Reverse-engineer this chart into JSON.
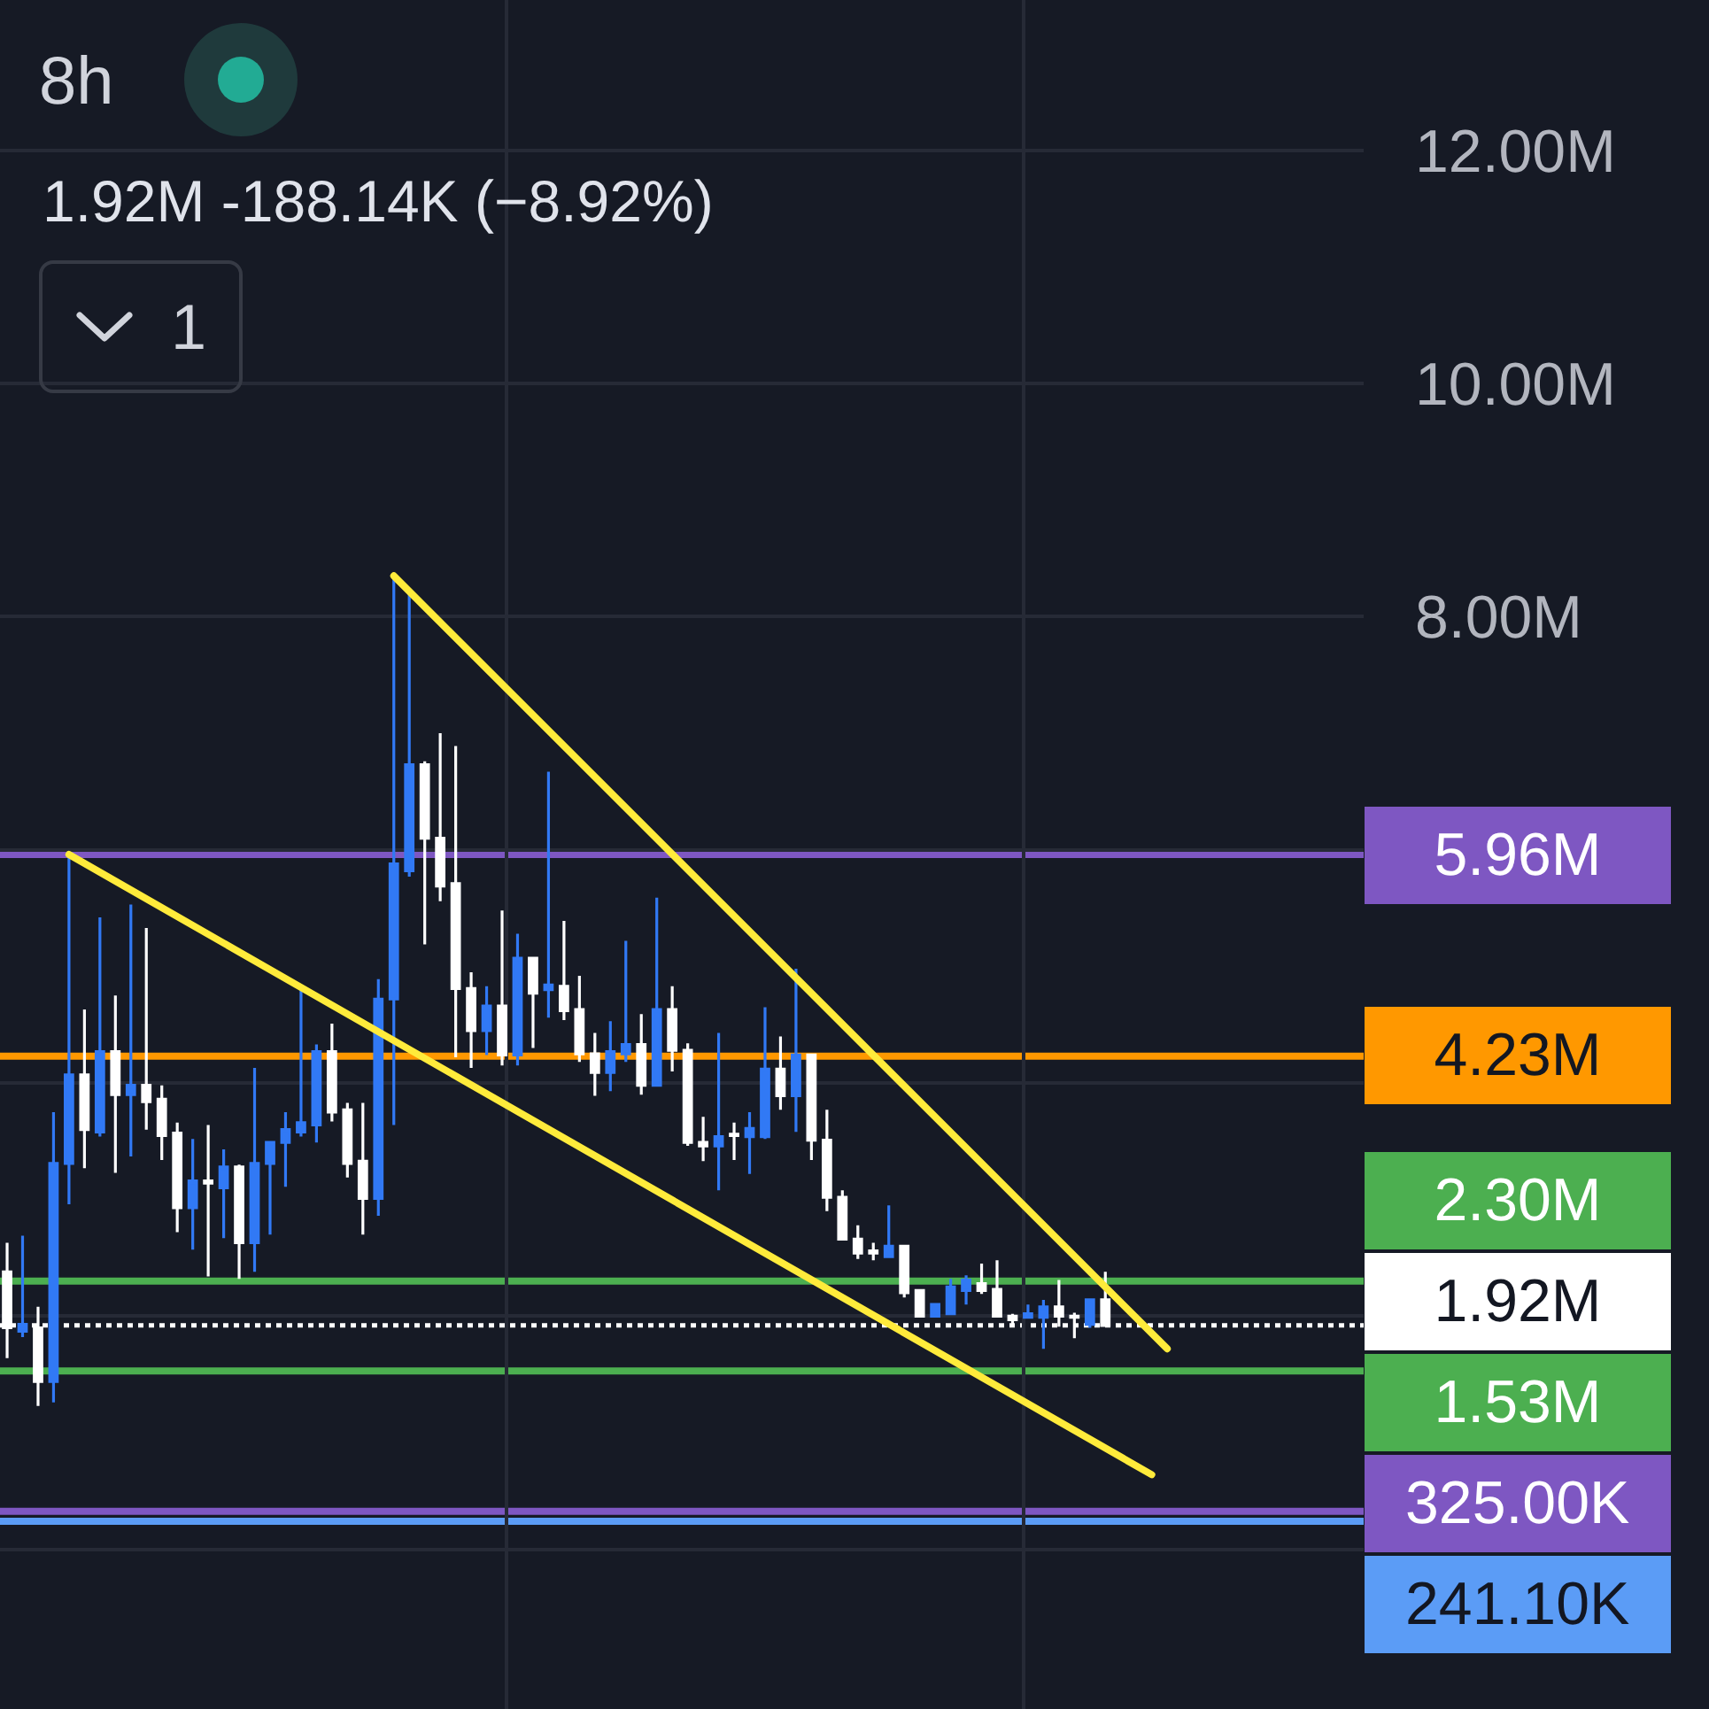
{
  "chart_data": {
    "type": "candlestick",
    "title": "8h",
    "subtitle": "1.92M -188.14K (−8.92%)",
    "annotations": [
      "1"
    ],
    "categories": [
      null,
      null,
      null,
      null,
      null,
      null,
      null,
      null,
      null,
      null,
      null,
      null,
      null,
      null,
      null,
      null,
      null,
      null,
      null,
      null,
      null,
      null,
      null,
      null,
      null,
      null,
      null,
      null,
      null,
      null,
      null,
      null,
      null,
      null,
      null,
      null,
      null,
      null,
      null,
      null,
      null,
      null,
      null,
      null,
      null,
      null,
      null,
      null,
      null,
      null,
      null,
      null,
      null,
      null,
      null,
      null,
      null,
      null,
      null,
      null,
      null,
      null,
      null,
      null,
      null,
      null,
      null,
      null,
      null,
      null,
      null,
      null,
      null,
      null,
      null,
      null,
      null,
      null,
      null,
      null,
      null,
      null,
      null,
      null,
      null,
      null,
      null,
      null
    ],
    "ohlc": [
      [
        2380000,
        2630000,
        1640000,
        1900000
      ],
      [
        1870000,
        2690000,
        1820000,
        1930000
      ],
      [
        1900000,
        2080000,
        1230000,
        1440000
      ],
      [
        1440000,
        3750000,
        1260000,
        3310000
      ],
      [
        3310000,
        5960000,
        2960000,
        4070000
      ],
      [
        4070000,
        4630000,
        3270000,
        3600000
      ],
      [
        3580000,
        5420000,
        3540000,
        4270000
      ],
      [
        4270000,
        4750000,
        3230000,
        3900000
      ],
      [
        3900000,
        5530000,
        3370000,
        3980000
      ],
      [
        3980000,
        5330000,
        3600000,
        3840000
      ],
      [
        3860000,
        3980000,
        3340000,
        3550000
      ],
      [
        3570000,
        3660000,
        2720000,
        2930000
      ],
      [
        2930000,
        3520000,
        2570000,
        3160000
      ],
      [
        3160000,
        3640000,
        2340000,
        3140000
      ],
      [
        3100000,
        3430000,
        2670000,
        3280000
      ],
      [
        3280000,
        3300000,
        2320000,
        2630000
      ],
      [
        2630000,
        4130000,
        2380000,
        3310000
      ],
      [
        3310000,
        3490000,
        2700000,
        3490000
      ],
      [
        3490000,
        3750000,
        3110000,
        3600000
      ],
      [
        3580000,
        4830000,
        3540000,
        3660000
      ],
      [
        3640000,
        4330000,
        3490000,
        4270000
      ],
      [
        4270000,
        4510000,
        3670000,
        3750000
      ],
      [
        3770000,
        3830000,
        3190000,
        3310000
      ],
      [
        3330000,
        3830000,
        2700000,
        3010000
      ],
      [
        3010000,
        4890000,
        2860000,
        4720000
      ],
      [
        4720000,
        8350000,
        3640000,
        5880000
      ],
      [
        5820000,
        8200000,
        5770000,
        6730000
      ],
      [
        6730000,
        6760000,
        5190000,
        6100000
      ],
      [
        6100000,
        7000000,
        5560000,
        5690000
      ],
      [
        5710000,
        6890000,
        4220000,
        4810000
      ],
      [
        4810000,
        4950000,
        4130000,
        4450000
      ],
      [
        4450000,
        4830000,
        4240000,
        4660000
      ],
      [
        4660000,
        5480000,
        4150000,
        4240000
      ],
      [
        4240000,
        5280000,
        4150000,
        5070000
      ],
      [
        5070000,
        5070000,
        4300000,
        4770000
      ],
      [
        4800000,
        6670000,
        4560000,
        4840000
      ],
      [
        4830000,
        5390000,
        4540000,
        4620000
      ],
      [
        4630000,
        4920000,
        4180000,
        4250000
      ],
      [
        4250000,
        4430000,
        3890000,
        4090000
      ],
      [
        4090000,
        4530000,
        3930000,
        4270000
      ],
      [
        4250000,
        5220000,
        4180000,
        4330000
      ],
      [
        4330000,
        4590000,
        3900000,
        3980000
      ],
      [
        3980000,
        5590000,
        3980000,
        4630000
      ],
      [
        4630000,
        4830000,
        4100000,
        4280000
      ],
      [
        4280000,
        4340000,
        3460000,
        3490000
      ],
      [
        3490000,
        3710000,
        3330000,
        3460000
      ],
      [
        3460000,
        4430000,
        3080000,
        3540000
      ],
      [
        3560000,
        3660000,
        3340000,
        3550000
      ],
      [
        3540000,
        3750000,
        3220000,
        3610000
      ],
      [
        3540000,
        4650000,
        3520000,
        4120000
      ],
      [
        4120000,
        4400000,
        3770000,
        3890000
      ],
      [
        3890000,
        4980000,
        3580000,
        4240000
      ],
      [
        4240000,
        4240000,
        3340000,
        3510000
      ],
      [
        3510000,
        3770000,
        2900000,
        3020000
      ],
      [
        3020000,
        3080000,
        2660000,
        2660000
      ],
      [
        2660000,
        2780000,
        2490000,
        2540000
      ],
      [
        2560000,
        2630000,
        2480000,
        2540000
      ],
      [
        2510000,
        2950000,
        2510000,
        2600000
      ],
      [
        2600000,
        2600000,
        2160000,
        2200000
      ],
      [
        2220000,
        2220000,
        1990000,
        2000000
      ],
      [
        2000000,
        2100000,
        1990000,
        2100000
      ],
      [
        2020000,
        2320000,
        2020000,
        2250000
      ],
      [
        2220000,
        2350000,
        2100000,
        2310000
      ],
      [
        2280000,
        2450000,
        2190000,
        2220000
      ],
      [
        2230000,
        2480000,
        2000000,
        2000000
      ],
      [
        2000000,
        2020000,
        1930000,
        1970000
      ],
      [
        1990000,
        2100000,
        1990000,
        2020000
      ],
      [
        1990000,
        2140000,
        1720000,
        2080000
      ],
      [
        2080000,
        2310000,
        1910000,
        2000000
      ],
      [
        2000000,
        2030000,
        1810000,
        1990000
      ],
      [
        1930000,
        2140000,
        1900000,
        2140000
      ],
      [
        2140000,
        2380000,
        1920000,
        1920000
      ],
      null,
      null,
      null,
      null,
      null,
      null,
      null,
      null,
      null,
      null,
      null,
      null,
      null,
      null,
      null,
      null
    ],
    "colors": [
      "#ffffff",
      "#3179f5",
      "#ffffff",
      "#3179f5",
      "#3179f5",
      "#ffffff",
      "#3179f5",
      "#ffffff",
      "#3179f5",
      "#ffffff",
      "#ffffff",
      "#ffffff",
      "#3179f5",
      "#ffffff",
      "#3179f5",
      "#ffffff",
      "#3179f5",
      "#3179f5",
      "#3179f5",
      "#3179f5",
      "#3179f5",
      "#ffffff",
      "#ffffff",
      "#ffffff",
      "#3179f5",
      "#3179f5",
      "#3179f5",
      "#ffffff",
      "#ffffff",
      "#ffffff",
      "#ffffff",
      "#3179f5",
      "#ffffff",
      "#3179f5",
      "#ffffff",
      "#3179f5",
      "#ffffff",
      "#ffffff",
      "#ffffff",
      "#3179f5",
      "#3179f5",
      "#ffffff",
      "#3179f5",
      "#ffffff",
      "#ffffff",
      "#ffffff",
      "#3179f5",
      "#ffffff",
      "#3179f5",
      "#3179f5",
      "#ffffff",
      "#3179f5",
      "#ffffff",
      "#ffffff",
      "#ffffff",
      "#ffffff",
      "#ffffff",
      "#3179f5",
      "#ffffff",
      "#ffffff",
      "#3179f5",
      "#3179f5",
      "#3179f5",
      "#ffffff",
      "#ffffff",
      "#ffffff",
      "#3179f5",
      "#3179f5",
      "#ffffff",
      "#ffffff",
      "#3179f5",
      "#ffffff",
      null,
      null,
      null,
      null,
      null,
      null,
      null,
      null,
      null,
      null,
      null,
      null,
      null,
      null,
      null,
      null
    ],
    "series": [
      {
        "type": "line",
        "color": "#ffeb3b",
        "values": [
          null,
          null,
          null,
          null,
          null,
          null,
          null,
          null,
          null,
          null,
          null,
          null,
          null,
          null,
          null,
          null,
          null,
          null,
          null,
          null,
          null,
          null,
          null,
          null,
          null,
          8350000,
          null,
          null,
          null,
          null,
          null,
          null,
          null,
          null,
          null,
          null,
          null,
          null,
          null,
          null,
          null,
          null,
          null,
          null,
          null,
          null,
          null,
          null,
          null,
          null,
          null,
          null,
          null,
          null,
          null,
          null,
          null,
          null,
          null,
          null,
          null,
          null,
          null,
          null,
          null,
          null,
          null,
          null,
          null,
          null,
          null,
          null,
          null,
          null,
          null,
          1720000,
          null,
          null,
          null,
          null,
          null,
          null,
          null,
          null,
          null,
          null,
          null,
          null
        ]
      },
      {
        "type": "line",
        "color": "#ffeb3b",
        "values": [
          null,
          null,
          null,
          null,
          5960000,
          null,
          null,
          null,
          null,
          null,
          null,
          null,
          null,
          null,
          null,
          null,
          null,
          null,
          null,
          null,
          null,
          null,
          null,
          null,
          null,
          null,
          null,
          null,
          null,
          null,
          null,
          null,
          null,
          null,
          null,
          null,
          null,
          null,
          null,
          null,
          null,
          null,
          null,
          null,
          null,
          null,
          null,
          null,
          null,
          null,
          null,
          null,
          null,
          null,
          null,
          null,
          null,
          null,
          null,
          null,
          null,
          null,
          null,
          null,
          null,
          null,
          null,
          null,
          null,
          null,
          null,
          null,
          null,
          null,
          640000,
          null,
          null,
          null,
          null,
          null,
          null,
          null,
          null,
          null,
          null,
          null,
          null,
          null
        ]
      }
    ],
    "marker": "none",
    "ylim": [
      -1370000,
      13290000
    ],
    "yticks": [
      {
        "value": 0,
        "label": null
      },
      {
        "value": 2000000,
        "label": null
      },
      {
        "value": 4000000,
        "label": null
      },
      {
        "value": 6000000,
        "label": null
      },
      {
        "value": 8000000,
        "label": "8.00M"
      },
      {
        "value": 10000000,
        "label": "10.00M"
      },
      {
        "value": 12000000,
        "label": "12.00M"
      }
    ],
    "ref_lines": [
      {
        "axis": "y",
        "value": 5960000,
        "label": "5.96M",
        "color": "#7e57c2"
      },
      {
        "axis": "y",
        "value": 4230000,
        "label": "4.23M",
        "color": "#ff9800"
      },
      {
        "axis": "y",
        "value": 2300000,
        "label": "2.30M",
        "color": "#4caf50"
      },
      {
        "axis": "y",
        "value": 1920000,
        "label": "1.92M",
        "color": "#ffffff",
        "line_style": "dotted"
      },
      {
        "axis": "y",
        "value": 1530000,
        "label": "1.53M",
        "color": "#4caf50"
      },
      {
        "axis": "y",
        "value": 325000,
        "label": "325.00K",
        "color": "#7e57c2"
      },
      {
        "axis": "y",
        "value": 241100,
        "label": "241.10K",
        "color": "#5b9cf6"
      }
    ],
    "grid": true,
    "tick_labels": "y"
  }
}
